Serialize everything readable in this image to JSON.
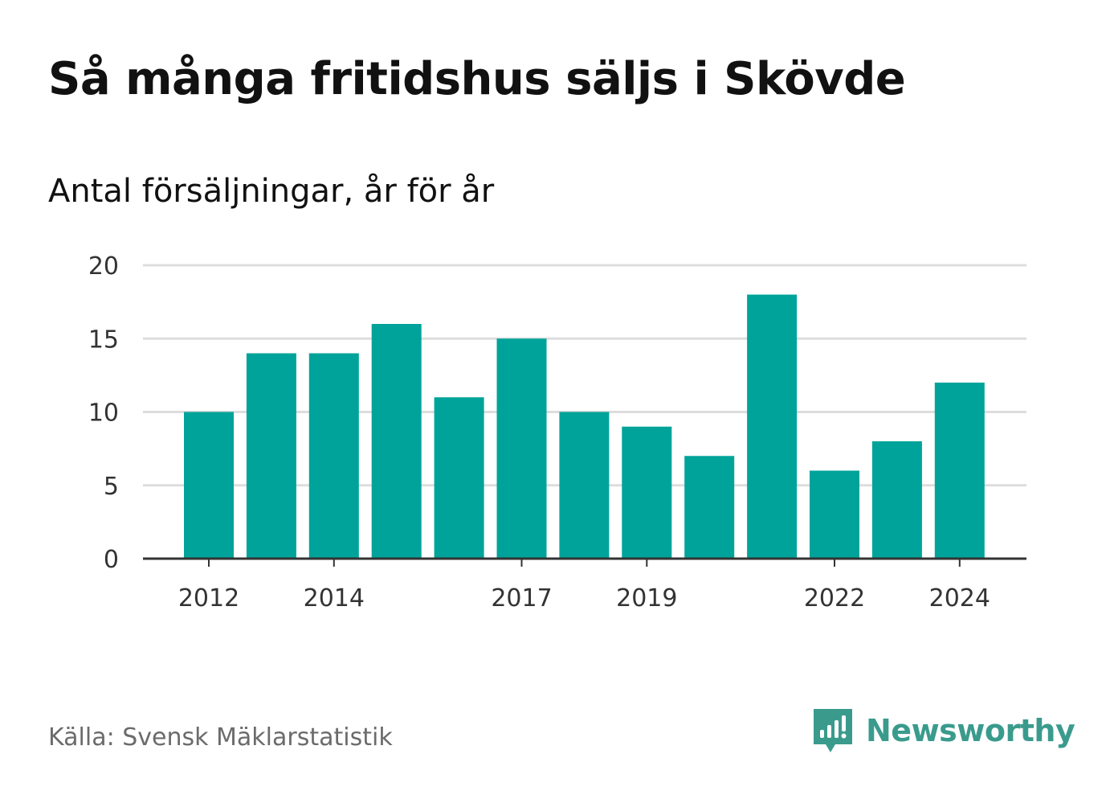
{
  "title": "Så många fritidshus säljs i Skövde",
  "subtitle": "Antal försäljningar, år för år",
  "source": "Källa: Svensk Mäklarstatistik",
  "brand": {
    "name": "Newsworthy",
    "icon": "newsworthy-logo-icon",
    "color": "#3a9b8d"
  },
  "colors": {
    "bar": "#00a39a",
    "grid": "#dddddd",
    "axis": "#333333"
  },
  "chart_data": {
    "type": "bar",
    "categories": [
      "2012",
      "2013",
      "2014",
      "2015",
      "2016",
      "2017",
      "2018",
      "2019",
      "2020",
      "2021",
      "2022",
      "2023",
      "2024"
    ],
    "values": [
      10,
      14,
      14,
      16,
      11,
      15,
      10,
      9,
      7,
      18,
      6,
      8,
      12
    ],
    "x_tick_labels": [
      "2012",
      "2014",
      "2017",
      "2019",
      "2022",
      "2024"
    ],
    "y_ticks": [
      0,
      5,
      10,
      15,
      20
    ],
    "ylim": [
      0,
      20
    ],
    "grid": true,
    "title": "Så många fritidshus säljs i Skövde",
    "subtitle": "Antal försäljningar, år för år",
    "xlabel": "",
    "ylabel": ""
  }
}
